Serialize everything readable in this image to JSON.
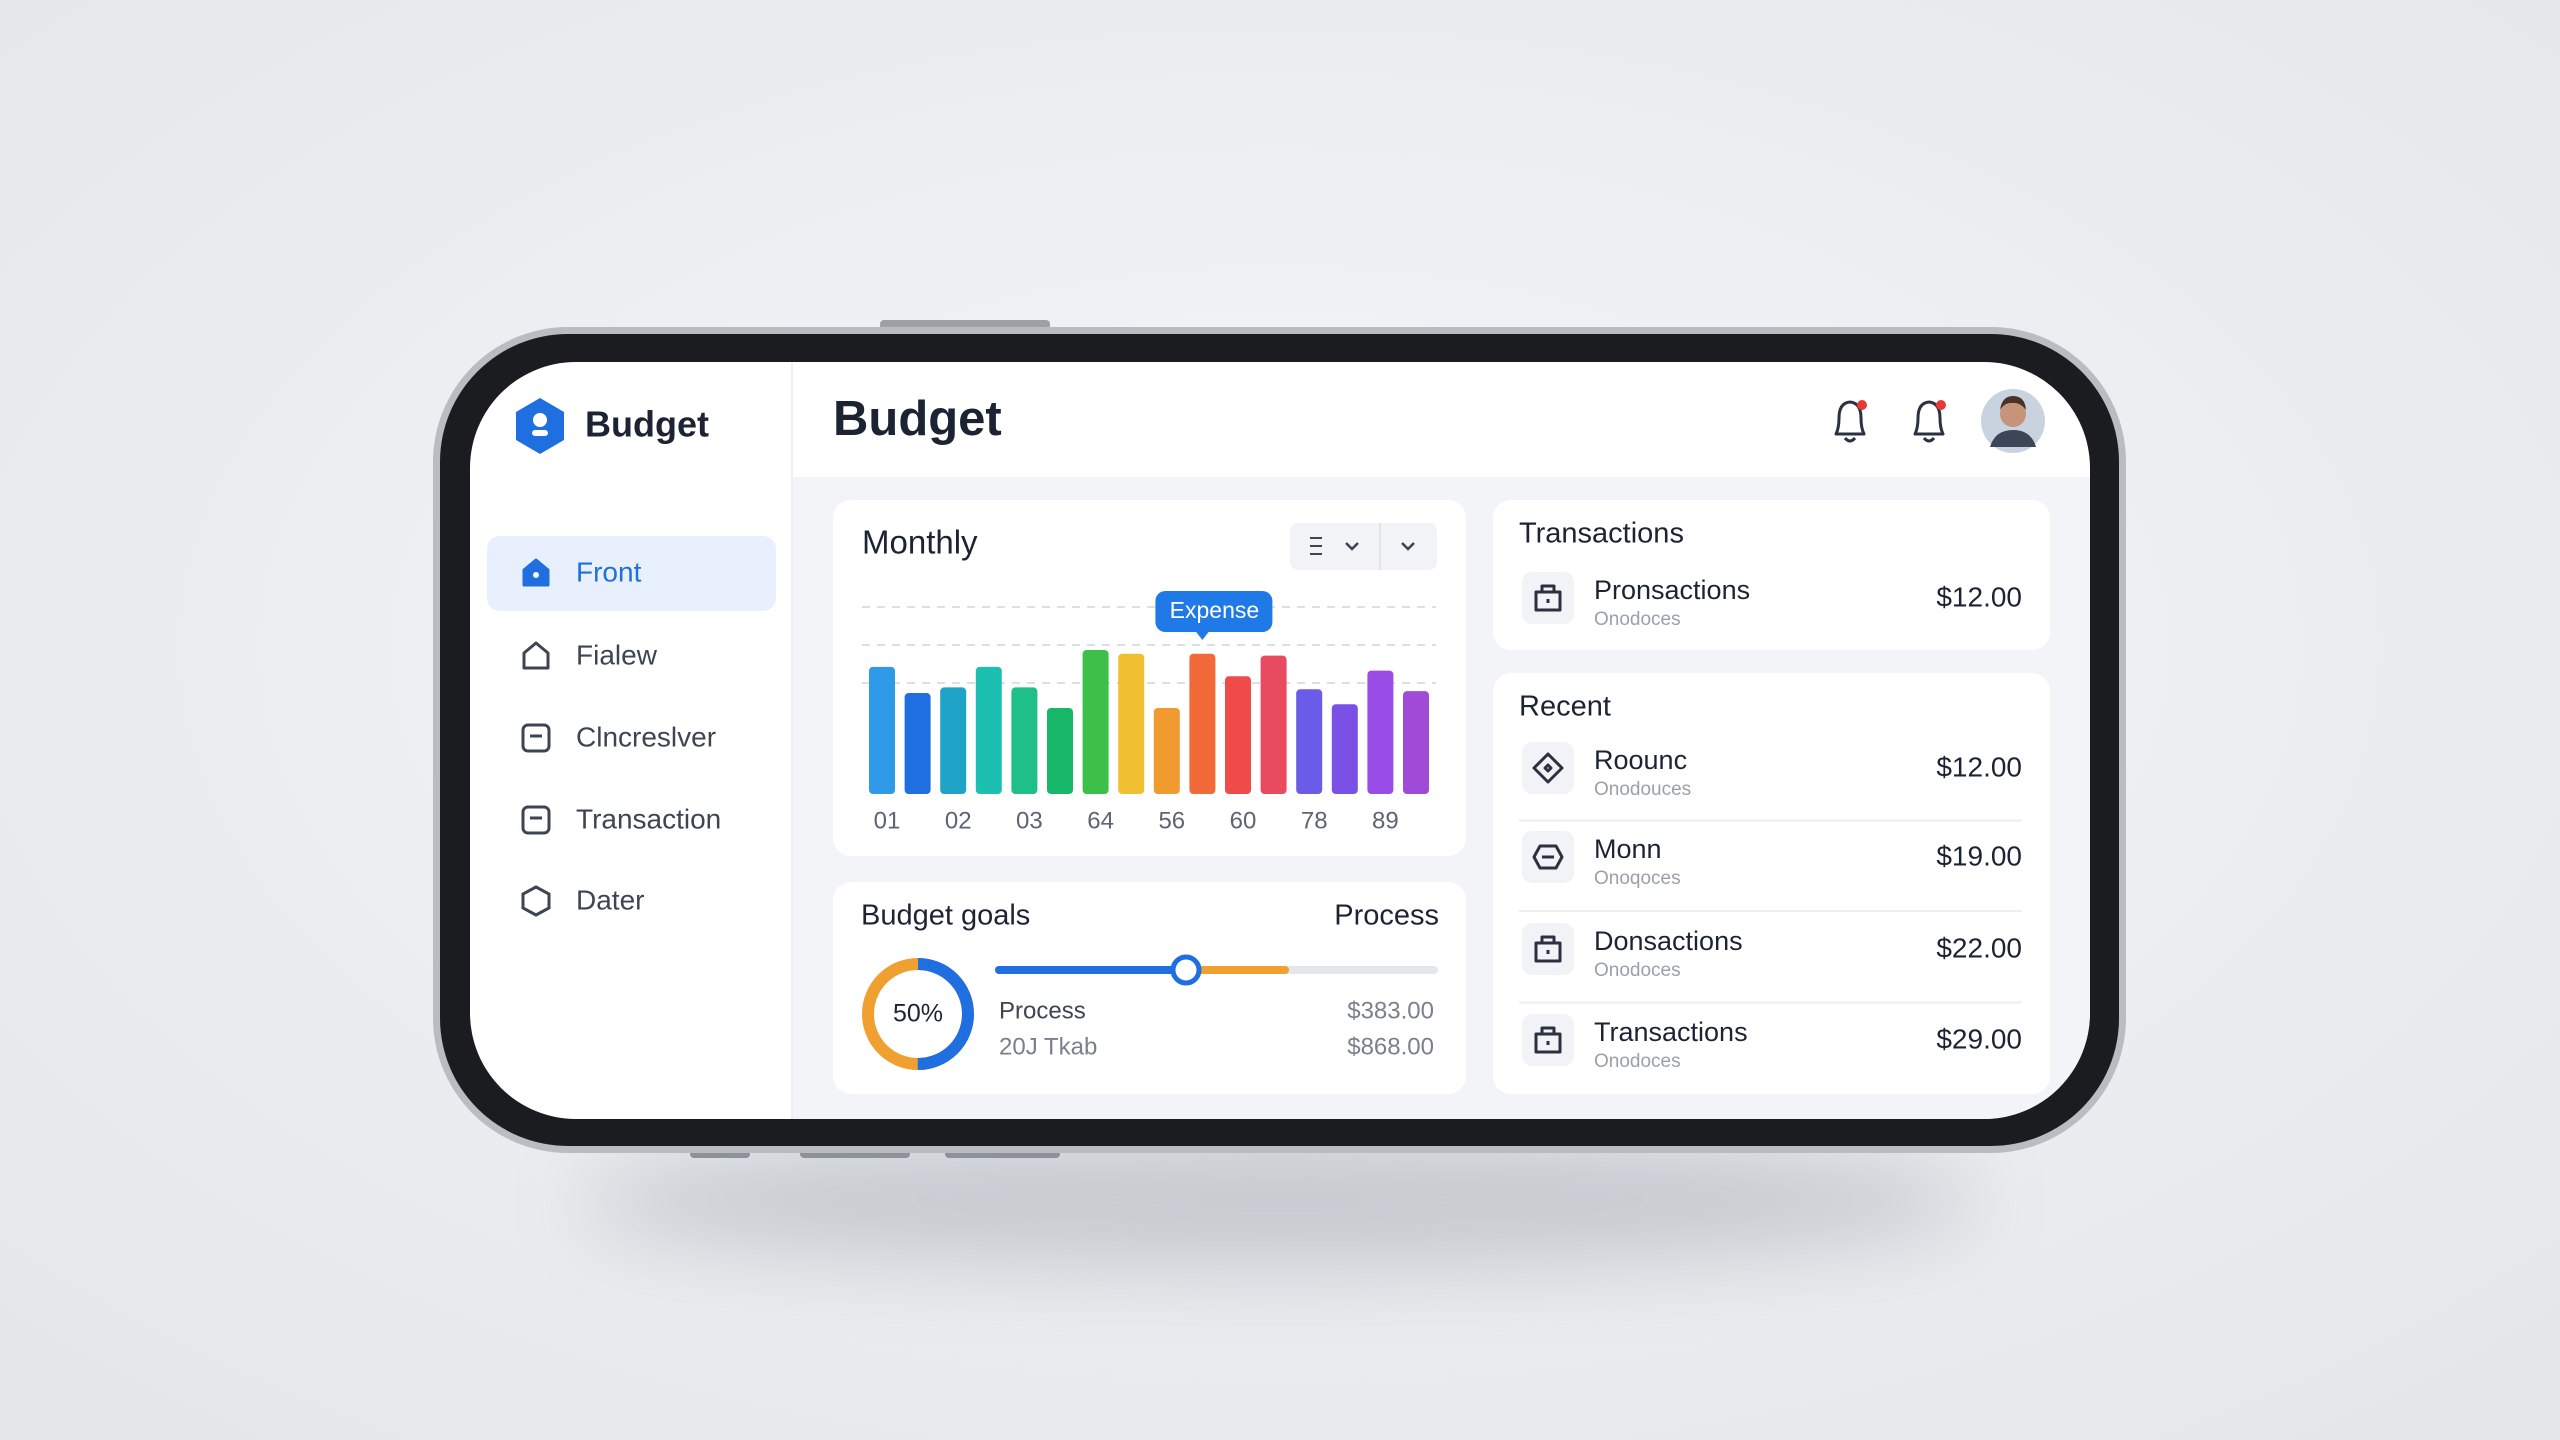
{
  "sidebar": {
    "brand": "Budget",
    "nav": [
      "Front",
      "Fialew",
      "Clncreslver",
      "Transaction",
      "Dater"
    ],
    "active": 0
  },
  "header": {
    "title": "Budget"
  },
  "chart_data": {
    "type": "bar",
    "title": "Monthly",
    "categories": [
      "01",
      null,
      "02",
      null,
      "03",
      null,
      "64",
      null,
      "56",
      null,
      "60",
      null,
      "78",
      null,
      "89",
      null
    ],
    "values": [
      68,
      54,
      57,
      68,
      57,
      46,
      77,
      75,
      46,
      75,
      63,
      74,
      56,
      48,
      66,
      55
    ],
    "colors": [
      "#2f9be8",
      "#1f6fe0",
      "#1fa4c8",
      "#1cc0b0",
      "#1fbf8a",
      "#18b86a",
      "#3cc04a",
      "#f0c030",
      "#f09a30",
      "#f26a3a",
      "#ef4b4b",
      "#e84a5f",
      "#6a5ce8",
      "#7a50e6",
      "#9a4de6",
      "#a04ad8"
    ],
    "ylim": [
      0,
      100
    ],
    "annotation": "Expense",
    "annotation_index": 9
  },
  "goals": {
    "title": "Budget goals",
    "status": "Process",
    "percent": 50,
    "percent_label": "50%",
    "rows": [
      {
        "label": "Process",
        "amount": "$383.00"
      },
      {
        "label": "20J Tkab",
        "amount": "$868.00"
      }
    ]
  },
  "transactions": {
    "title": "Transactions",
    "items": [
      {
        "name": "Pronsactions",
        "sub": "Onodoces",
        "amount": "$12.00"
      }
    ]
  },
  "recent": {
    "title": "Recent",
    "items": [
      {
        "name": "Roounc",
        "sub": "Onodouces",
        "amount": "$12.00"
      },
      {
        "name": "Monn",
        "sub": "Onoqoces",
        "amount": "$19.00"
      },
      {
        "name": "Donsactions",
        "sub": "Onodoces",
        "amount": "$22.00"
      },
      {
        "name": "Transactions",
        "sub": "Onodoces",
        "amount": "$29.00"
      }
    ]
  }
}
